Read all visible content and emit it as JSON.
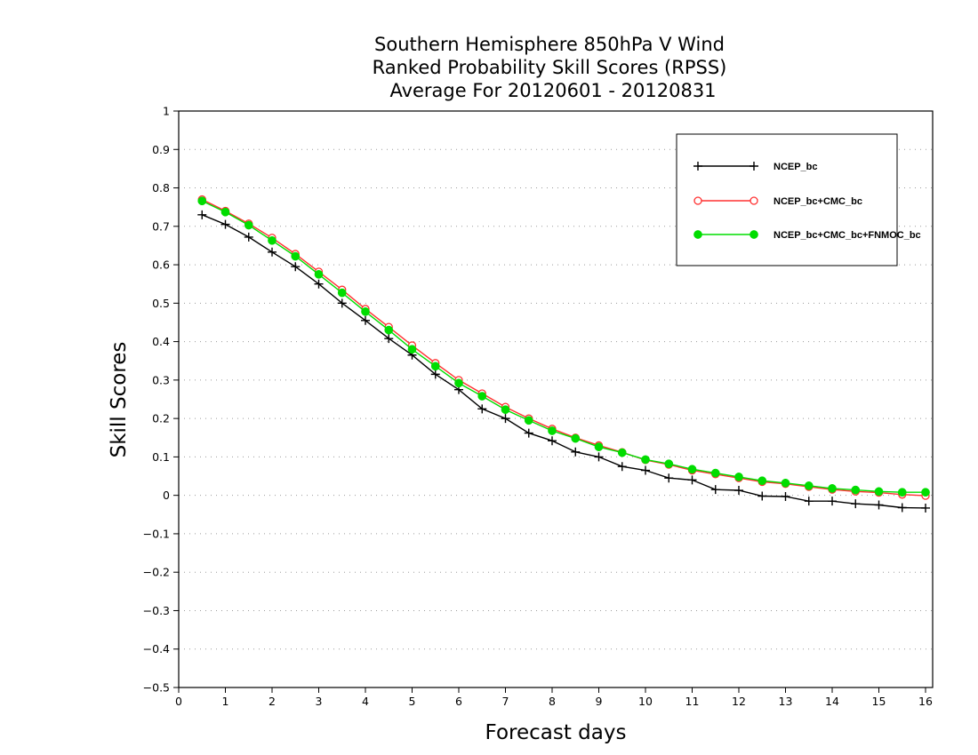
{
  "chart_data": {
    "type": "line",
    "title_lines": [
      "Southern Hemisphere 850hPa V Wind",
      "Ranked Probability Skill Scores (RPSS)",
      "Average For 20120601 - 20120831"
    ],
    "xlabel": "Forecast days",
    "ylabel": "Skill Scores",
    "xlim": [
      0,
      16.3
    ],
    "ylim": [
      -0.5,
      1
    ],
    "x_ticks": [
      0,
      1,
      2,
      3,
      4,
      5,
      6,
      7,
      8,
      9,
      10,
      11,
      12,
      13,
      14,
      15,
      16
    ],
    "y_ticks": [
      -0.5,
      -0.4,
      -0.3,
      -0.2,
      -0.1,
      0,
      0.1,
      0.2,
      0.3,
      0.4,
      0.5,
      0.6,
      0.7,
      0.8,
      0.9,
      1
    ],
    "y_tick_labels": [
      "−0.5",
      "−0.4",
      "−0.3",
      "−0.2",
      "−0.1",
      "0",
      "0.1",
      "0.2",
      "0.3",
      "0.4",
      "0.5",
      "0.6",
      "0.7",
      "0.8",
      "0.9",
      "1"
    ],
    "grid": "horizontal dotted",
    "legend_position": "top-right",
    "x": [
      0.5,
      1,
      1.5,
      2,
      2.5,
      3,
      3.5,
      4,
      4.5,
      5,
      5.5,
      6,
      6.5,
      7,
      7.5,
      8,
      8.5,
      9,
      9.5,
      10,
      10.5,
      11,
      11.5,
      12,
      12.5,
      13,
      13.5,
      14,
      14.5,
      15,
      15.5,
      16
    ],
    "series": [
      {
        "name": "NCEP_bc",
        "color": "#000000",
        "marker": "plus",
        "values": [
          0.73,
          0.705,
          0.672,
          0.633,
          0.595,
          0.55,
          0.5,
          0.455,
          0.408,
          0.365,
          0.315,
          0.275,
          0.225,
          0.2,
          0.162,
          0.142,
          0.113,
          0.1,
          0.075,
          0.065,
          0.045,
          0.04,
          0.015,
          0.013,
          -0.002,
          -0.003,
          -0.015,
          -0.015,
          -0.022,
          -0.025,
          -0.032,
          -0.033
        ]
      },
      {
        "name": "NCEP_bc+CMC_bc",
        "color": "#ff3030",
        "marker": "open-circle",
        "values": [
          0.77,
          0.74,
          0.707,
          0.67,
          0.628,
          0.582,
          0.535,
          0.485,
          0.438,
          0.39,
          0.344,
          0.3,
          0.265,
          0.23,
          0.2,
          0.173,
          0.15,
          0.13,
          0.112,
          0.092,
          0.08,
          0.065,
          0.055,
          0.045,
          0.035,
          0.03,
          0.022,
          0.015,
          0.01,
          0.007,
          0.002,
          -0.001
        ]
      },
      {
        "name": "NCEP_bc+CMC_bc+FNMOC_bc",
        "color": "#00dd00",
        "marker": "filled-circle",
        "values": [
          0.766,
          0.737,
          0.703,
          0.663,
          0.622,
          0.575,
          0.527,
          0.478,
          0.43,
          0.38,
          0.336,
          0.292,
          0.258,
          0.223,
          0.195,
          0.168,
          0.148,
          0.126,
          0.111,
          0.093,
          0.082,
          0.068,
          0.058,
          0.048,
          0.038,
          0.032,
          0.025,
          0.018,
          0.014,
          0.01,
          0.008,
          0.008
        ]
      }
    ]
  }
}
